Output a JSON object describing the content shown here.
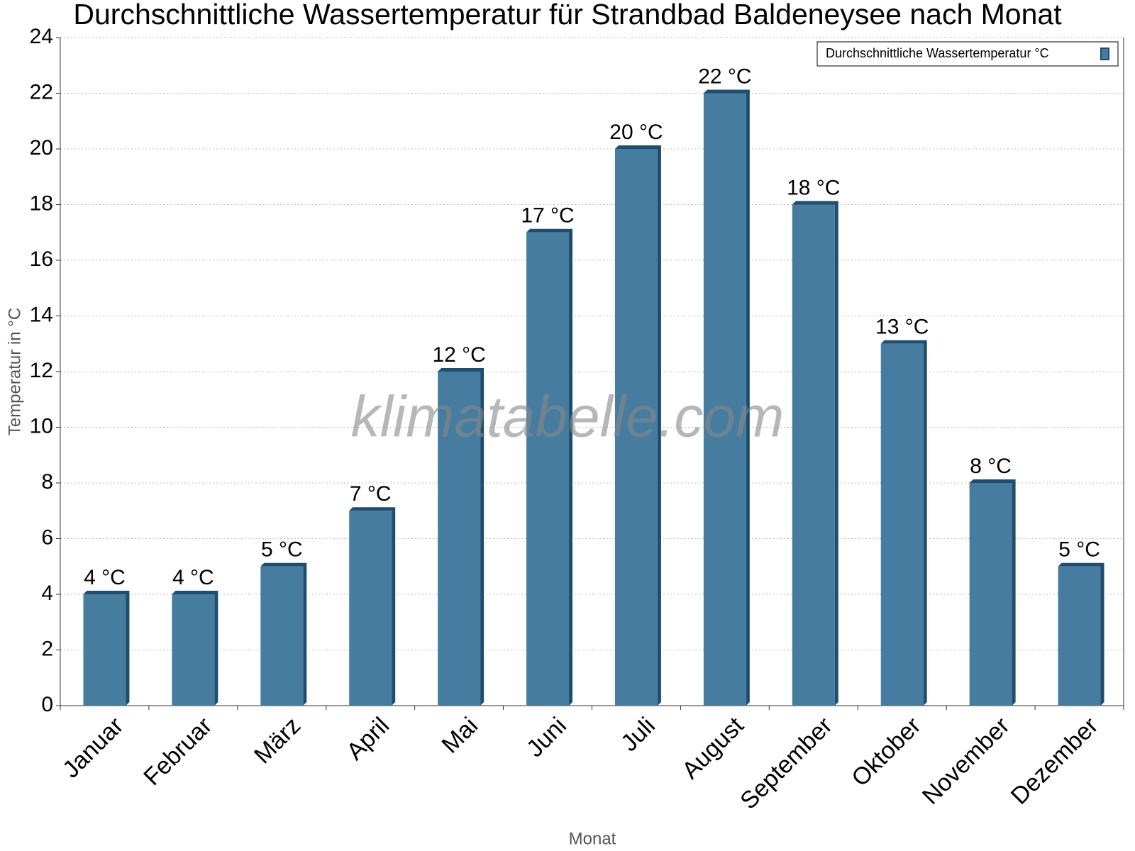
{
  "chart_data": {
    "type": "bar",
    "title": "Durchschnittliche Wassertemperatur für Strandbad Baldeneysee nach Monat",
    "x_label": "Monat",
    "y_label": "Temperatur in °C",
    "watermark": "klimatabelle.com",
    "categories": [
      "Januar",
      "Februar",
      "März",
      "April",
      "Mai",
      "Juni",
      "Juli",
      "August",
      "September",
      "Oktober",
      "November",
      "Dezember"
    ],
    "series": [
      {
        "name": "Durchschnittliche Wassertemperatur °C",
        "color": "#467c9f",
        "values": [
          4,
          4,
          5,
          7,
          12,
          17,
          20,
          22,
          18,
          13,
          8,
          5
        ],
        "value_labels": [
          "4 °C",
          "4 °C",
          "5 °C",
          "7 °C",
          "12 °C",
          "17 °C",
          "20 °C",
          "22 °C",
          "18 °C",
          "13 °C",
          "8 °C",
          "5 °C"
        ]
      }
    ],
    "ylim": [
      0,
      24
    ],
    "yticks": [
      0,
      2,
      4,
      6,
      8,
      10,
      12,
      14,
      16,
      18,
      20,
      22,
      24
    ],
    "grid": true,
    "legend": "top-right"
  }
}
